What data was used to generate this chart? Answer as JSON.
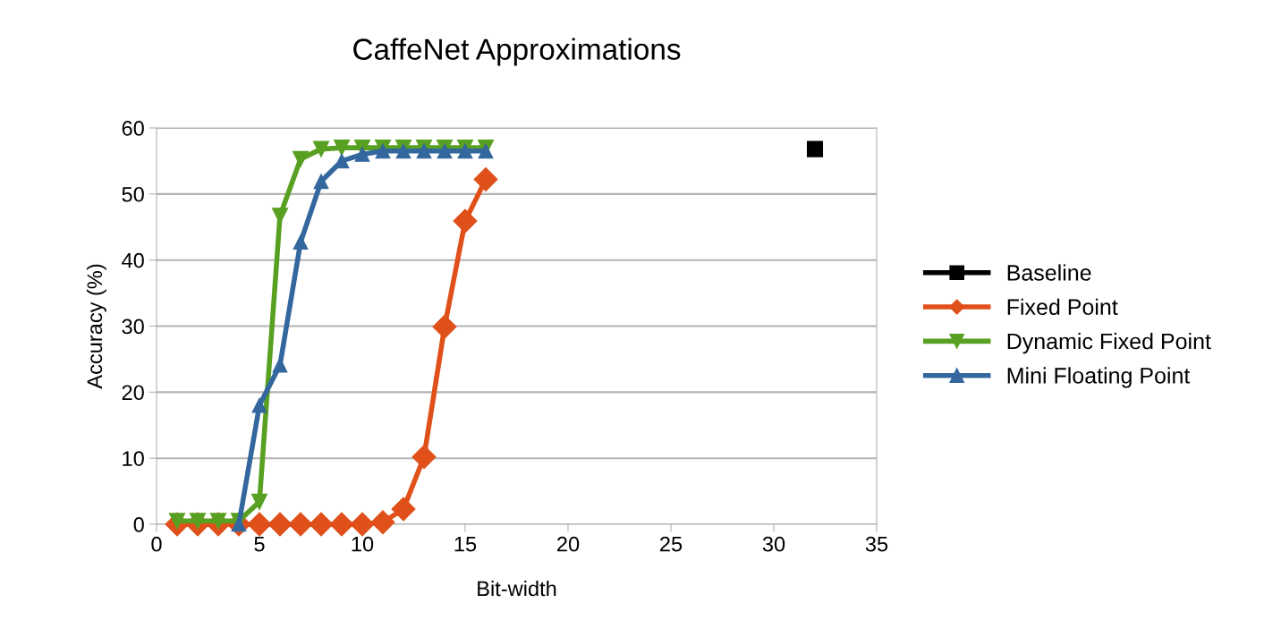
{
  "chart_data": {
    "type": "line",
    "title": "CaffeNet Approximations",
    "xlabel": "Bit-width",
    "ylabel": "Accuracy (%)",
    "xlim": [
      0,
      35
    ],
    "xticks": [
      0,
      5,
      10,
      15,
      20,
      25,
      30,
      35
    ],
    "ylim": [
      0,
      60
    ],
    "yticks": [
      0,
      10,
      20,
      30,
      40,
      50,
      60
    ],
    "grid": "y",
    "legend": "right",
    "series": [
      {
        "name": "Baseline",
        "color": "#000000",
        "marker": "square",
        "x": [
          32
        ],
        "values": [
          56.8
        ]
      },
      {
        "name": "Fixed Point",
        "color": "#e0501a",
        "marker": "diamond",
        "x": [
          1,
          2,
          3,
          4,
          5,
          6,
          7,
          8,
          9,
          10,
          11,
          12,
          13,
          14,
          15,
          16
        ],
        "values": [
          0,
          0,
          0,
          0,
          0,
          0,
          0,
          0,
          0,
          0,
          0.3,
          2.3,
          10.2,
          29.9,
          45.9,
          52.2
        ]
      },
      {
        "name": "Dynamic Fixed Point",
        "color": "#58a021",
        "marker": "triangle_down",
        "x": [
          1,
          2,
          3,
          4,
          5,
          6,
          7,
          8,
          9,
          10,
          11,
          12,
          13,
          14,
          15,
          16
        ],
        "values": [
          0.5,
          0.5,
          0.5,
          0.5,
          3.4,
          46.7,
          55.3,
          56.8,
          57,
          57,
          57,
          57,
          57,
          57,
          57,
          57
        ]
      },
      {
        "name": "Mini Floating Point",
        "color": "#33679d",
        "marker": "triangle",
        "x": [
          4,
          5,
          6,
          7,
          8,
          9,
          10,
          11,
          12,
          13,
          14,
          15,
          16
        ],
        "values": [
          0,
          18,
          24.1,
          42.7,
          51.9,
          55,
          56,
          56.5,
          56.5,
          56.5,
          56.5,
          56.5,
          56.5
        ]
      }
    ]
  }
}
